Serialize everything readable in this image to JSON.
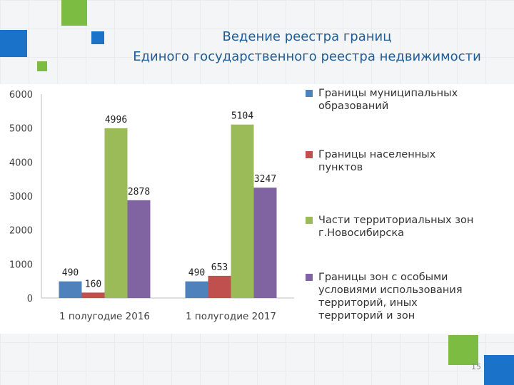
{
  "slide": {
    "title_line1": "Ведение реестра границ",
    "title_line2": "Единого государственного реестра недвижимости",
    "page_number": "15",
    "accent_blue": "#1a73c8",
    "accent_green": "#7cbc42"
  },
  "chart_data": {
    "type": "bar",
    "categories": [
      "1 полугодие 2016",
      "1 полугодие 2017"
    ],
    "series": [
      {
        "name": "Границы муниципальных образований",
        "color": "#4f81bd",
        "values": [
          490,
          490
        ],
        "labels": [
          "490",
          "490"
        ]
      },
      {
        "name": "Границы населенных пунктов",
        "color": "#c0504d",
        "values": [
          160,
          653
        ],
        "labels": [
          "160",
          "653"
        ]
      },
      {
        "name": "Части территориальных зон г.Новосибирска",
        "color": "#9bbb59",
        "values": [
          4996,
          5104
        ],
        "labels": [
          "4996",
          "5104"
        ]
      },
      {
        "name": "Границы зон с особыми условиями использования территорий, иных территорий и зон",
        "color": "#8064a2",
        "values": [
          2878,
          3247
        ],
        "labels": [
          "2878",
          "3247"
        ]
      }
    ],
    "ylim": [
      0,
      6000
    ],
    "yticks": [
      "0",
      "1000",
      "2000",
      "3000",
      "4000",
      "5000",
      "6000"
    ],
    "grid": false,
    "legend": "right"
  }
}
